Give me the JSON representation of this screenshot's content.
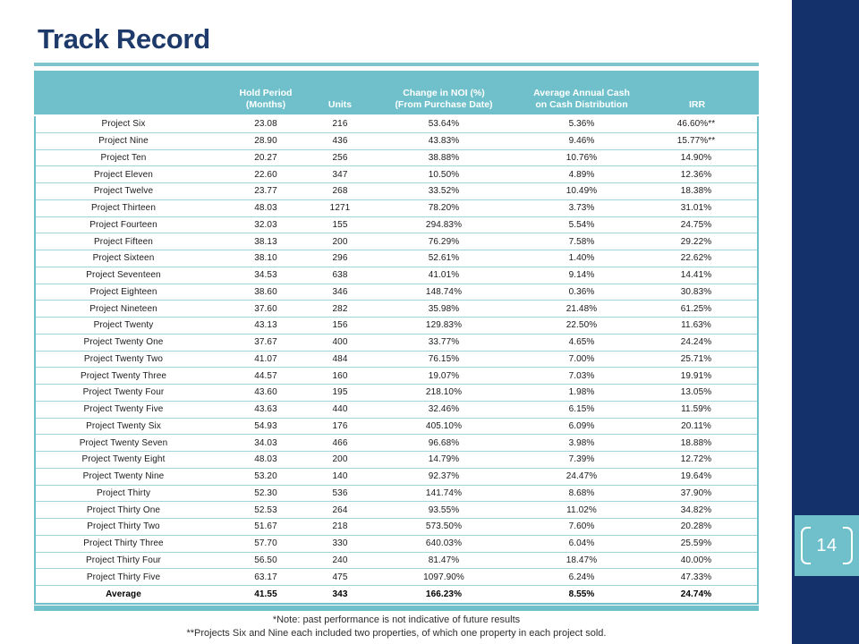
{
  "slide": {
    "title": "Track Record",
    "page_number": "14"
  },
  "colors": {
    "sidebar_navy": "#14316b",
    "title_navy": "#1d3a6a",
    "teal_accent": "#6fc0cb",
    "teal_rule": "#7fc4cd",
    "row_separator": "#a3d6dc"
  },
  "table": {
    "headers": [
      "",
      "Hold Period\n(Months)",
      "Units",
      "Change in NOI (%)\n(From Purchase Date)",
      "Average Annual Cash\non Cash Distribution",
      "IRR"
    ],
    "rows": [
      {
        "cells": [
          "Project Six",
          "23.08",
          "216",
          "53.64%",
          "5.36%",
          "46.60%**"
        ]
      },
      {
        "cells": [
          "Project Nine",
          "28.90",
          "436",
          "43.83%",
          "9.46%",
          "15.77%**"
        ]
      },
      {
        "cells": [
          "Project Ten",
          "20.27",
          "256",
          "38.88%",
          "10.76%",
          "14.90%"
        ]
      },
      {
        "cells": [
          "Project Eleven",
          "22.60",
          "347",
          "10.50%",
          "4.89%",
          "12.36%"
        ]
      },
      {
        "cells": [
          "Project Twelve",
          "23.77",
          "268",
          "33.52%",
          "10.49%",
          "18.38%"
        ]
      },
      {
        "cells": [
          "Project Thirteen",
          "48.03",
          "1271",
          "78.20%",
          "3.73%",
          "31.01%"
        ]
      },
      {
        "cells": [
          "Project Fourteen",
          "32.03",
          "155",
          "294.83%",
          "5.54%",
          "24.75%"
        ]
      },
      {
        "cells": [
          "Project Fifteen",
          "38.13",
          "200",
          "76.29%",
          "7.58%",
          "29.22%"
        ]
      },
      {
        "cells": [
          "Project Sixteen",
          "38.10",
          "296",
          "52.61%",
          "1.40%",
          "22.62%"
        ]
      },
      {
        "cells": [
          "Project Seventeen",
          "34.53",
          "638",
          "41.01%",
          "9.14%",
          "14.41%"
        ]
      },
      {
        "cells": [
          "Project Eighteen",
          "38.60",
          "346",
          "148.74%",
          "0.36%",
          "30.83%"
        ]
      },
      {
        "cells": [
          "Project Nineteen",
          "37.60",
          "282",
          "35.98%",
          "21.48%",
          "61.25%"
        ]
      },
      {
        "cells": [
          "Project Twenty",
          "43.13",
          "156",
          "129.83%",
          "22.50%",
          "11.63%"
        ]
      },
      {
        "cells": [
          "Project Twenty One",
          "37.67",
          "400",
          "33.77%",
          "4.65%",
          "24.24%"
        ]
      },
      {
        "cells": [
          "Project Twenty Two",
          "41.07",
          "484",
          "76.15%",
          "7.00%",
          "25.71%"
        ]
      },
      {
        "cells": [
          "Project Twenty Three",
          "44.57",
          "160",
          "19.07%",
          "7.03%",
          "19.91%"
        ]
      },
      {
        "cells": [
          "Project Twenty Four",
          "43.60",
          "195",
          "218.10%",
          "1.98%",
          "13.05%"
        ]
      },
      {
        "cells": [
          "Project Twenty Five",
          "43.63",
          "440",
          "32.46%",
          "6.15%",
          "11.59%"
        ]
      },
      {
        "cells": [
          "Project Twenty Six",
          "54.93",
          "176",
          "405.10%",
          "6.09%",
          "20.11%"
        ]
      },
      {
        "cells": [
          "Project Twenty Seven",
          "34.03",
          "466",
          "96.68%",
          "3.98%",
          "18.88%"
        ]
      },
      {
        "cells": [
          "Project Twenty Eight",
          "48.03",
          "200",
          "14.79%",
          "7.39%",
          "12.72%"
        ]
      },
      {
        "cells": [
          "Project Twenty Nine",
          "53.20",
          "140",
          "92.37%",
          "24.47%",
          "19.64%"
        ]
      },
      {
        "cells": [
          "Project Thirty",
          "52.30",
          "536",
          "141.74%",
          "8.68%",
          "37.90%"
        ]
      },
      {
        "cells": [
          "Project Thirty One",
          "52.53",
          "264",
          "93.55%",
          "11.02%",
          "34.82%"
        ]
      },
      {
        "cells": [
          "Project Thirty Two",
          "51.67",
          "218",
          "573.50%",
          "7.60%",
          "20.28%"
        ]
      },
      {
        "cells": [
          "Project Thirty Three",
          "57.70",
          "330",
          "640.03%",
          "6.04%",
          "25.59%"
        ]
      },
      {
        "cells": [
          "Project Thirty Four",
          "56.50",
          "240",
          "81.47%",
          "18.47%",
          "40.00%"
        ]
      },
      {
        "cells": [
          "Project Thirty Five",
          "63.17",
          "475",
          "1097.90%",
          "6.24%",
          "47.33%"
        ]
      },
      {
        "cells": [
          "Average",
          "41.55",
          "343",
          "166.23%",
          "8.55%",
          "24.74%"
        ],
        "bold": true
      }
    ]
  },
  "footnotes": [
    "*Note: past performance is not indicative of future results",
    "**Projects Six and Nine each included two properties, of which one property in each project sold."
  ]
}
